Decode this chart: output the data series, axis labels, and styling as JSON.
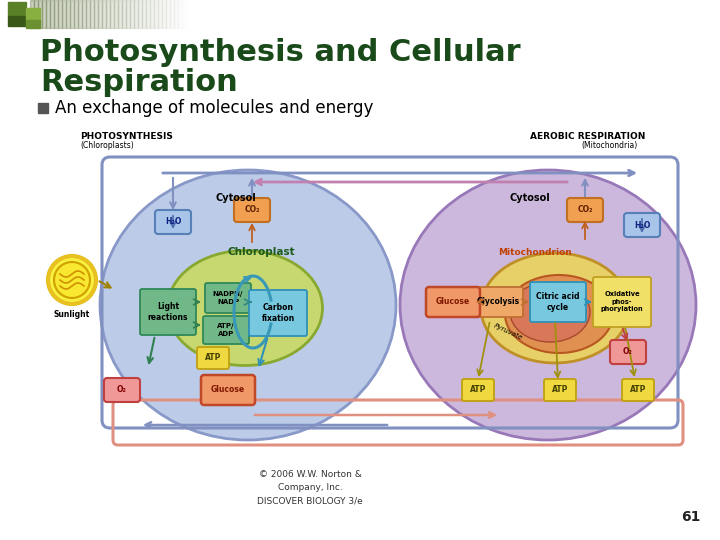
{
  "title_line1": "Photosynthesis and Cellular",
  "title_line2": "Respiration",
  "subtitle": "An exchange of molecules and energy",
  "title_color": "#1a4a1a",
  "subtitle_color": "#000000",
  "background_color": "#ffffff",
  "copyright_text": "© 2006 W.W. Norton &\nCompany, Inc.\nDISCOVER BIOLOGY 3/e",
  "page_number": "61",
  "left_label": "PHOTOSYNTHESIS",
  "left_sublabel": "(Chloroplasts)",
  "right_label": "AEROBIC RESPIRATION",
  "right_sublabel": "(Mitochondria)",
  "left_outer_color": "#b8c8e8",
  "right_outer_color": "#d0b8dc",
  "left_inner_color": "#c8d870",
  "right_mito_outer_color": "#e8d870",
  "right_mito_inner_color": "#e8a870",
  "sunlight_color": "#f8e040",
  "lr_box_color": "#70b888",
  "nadph_box_color": "#70b888",
  "cf_box_color": "#80c0d8",
  "glyc_box_color": "#f0a868",
  "cac_box_color": "#80c0d8",
  "op_box_color": "#f0e070",
  "h2o_color": "#90b8e8",
  "co2_color": "#f0a060",
  "atp_color": "#f0d840",
  "glucose_color": "#f0a868",
  "o2_color": "#f09898",
  "connector_blue": "#8090c0",
  "connector_pink": "#c080b0",
  "connector_salmon": "#e09080"
}
